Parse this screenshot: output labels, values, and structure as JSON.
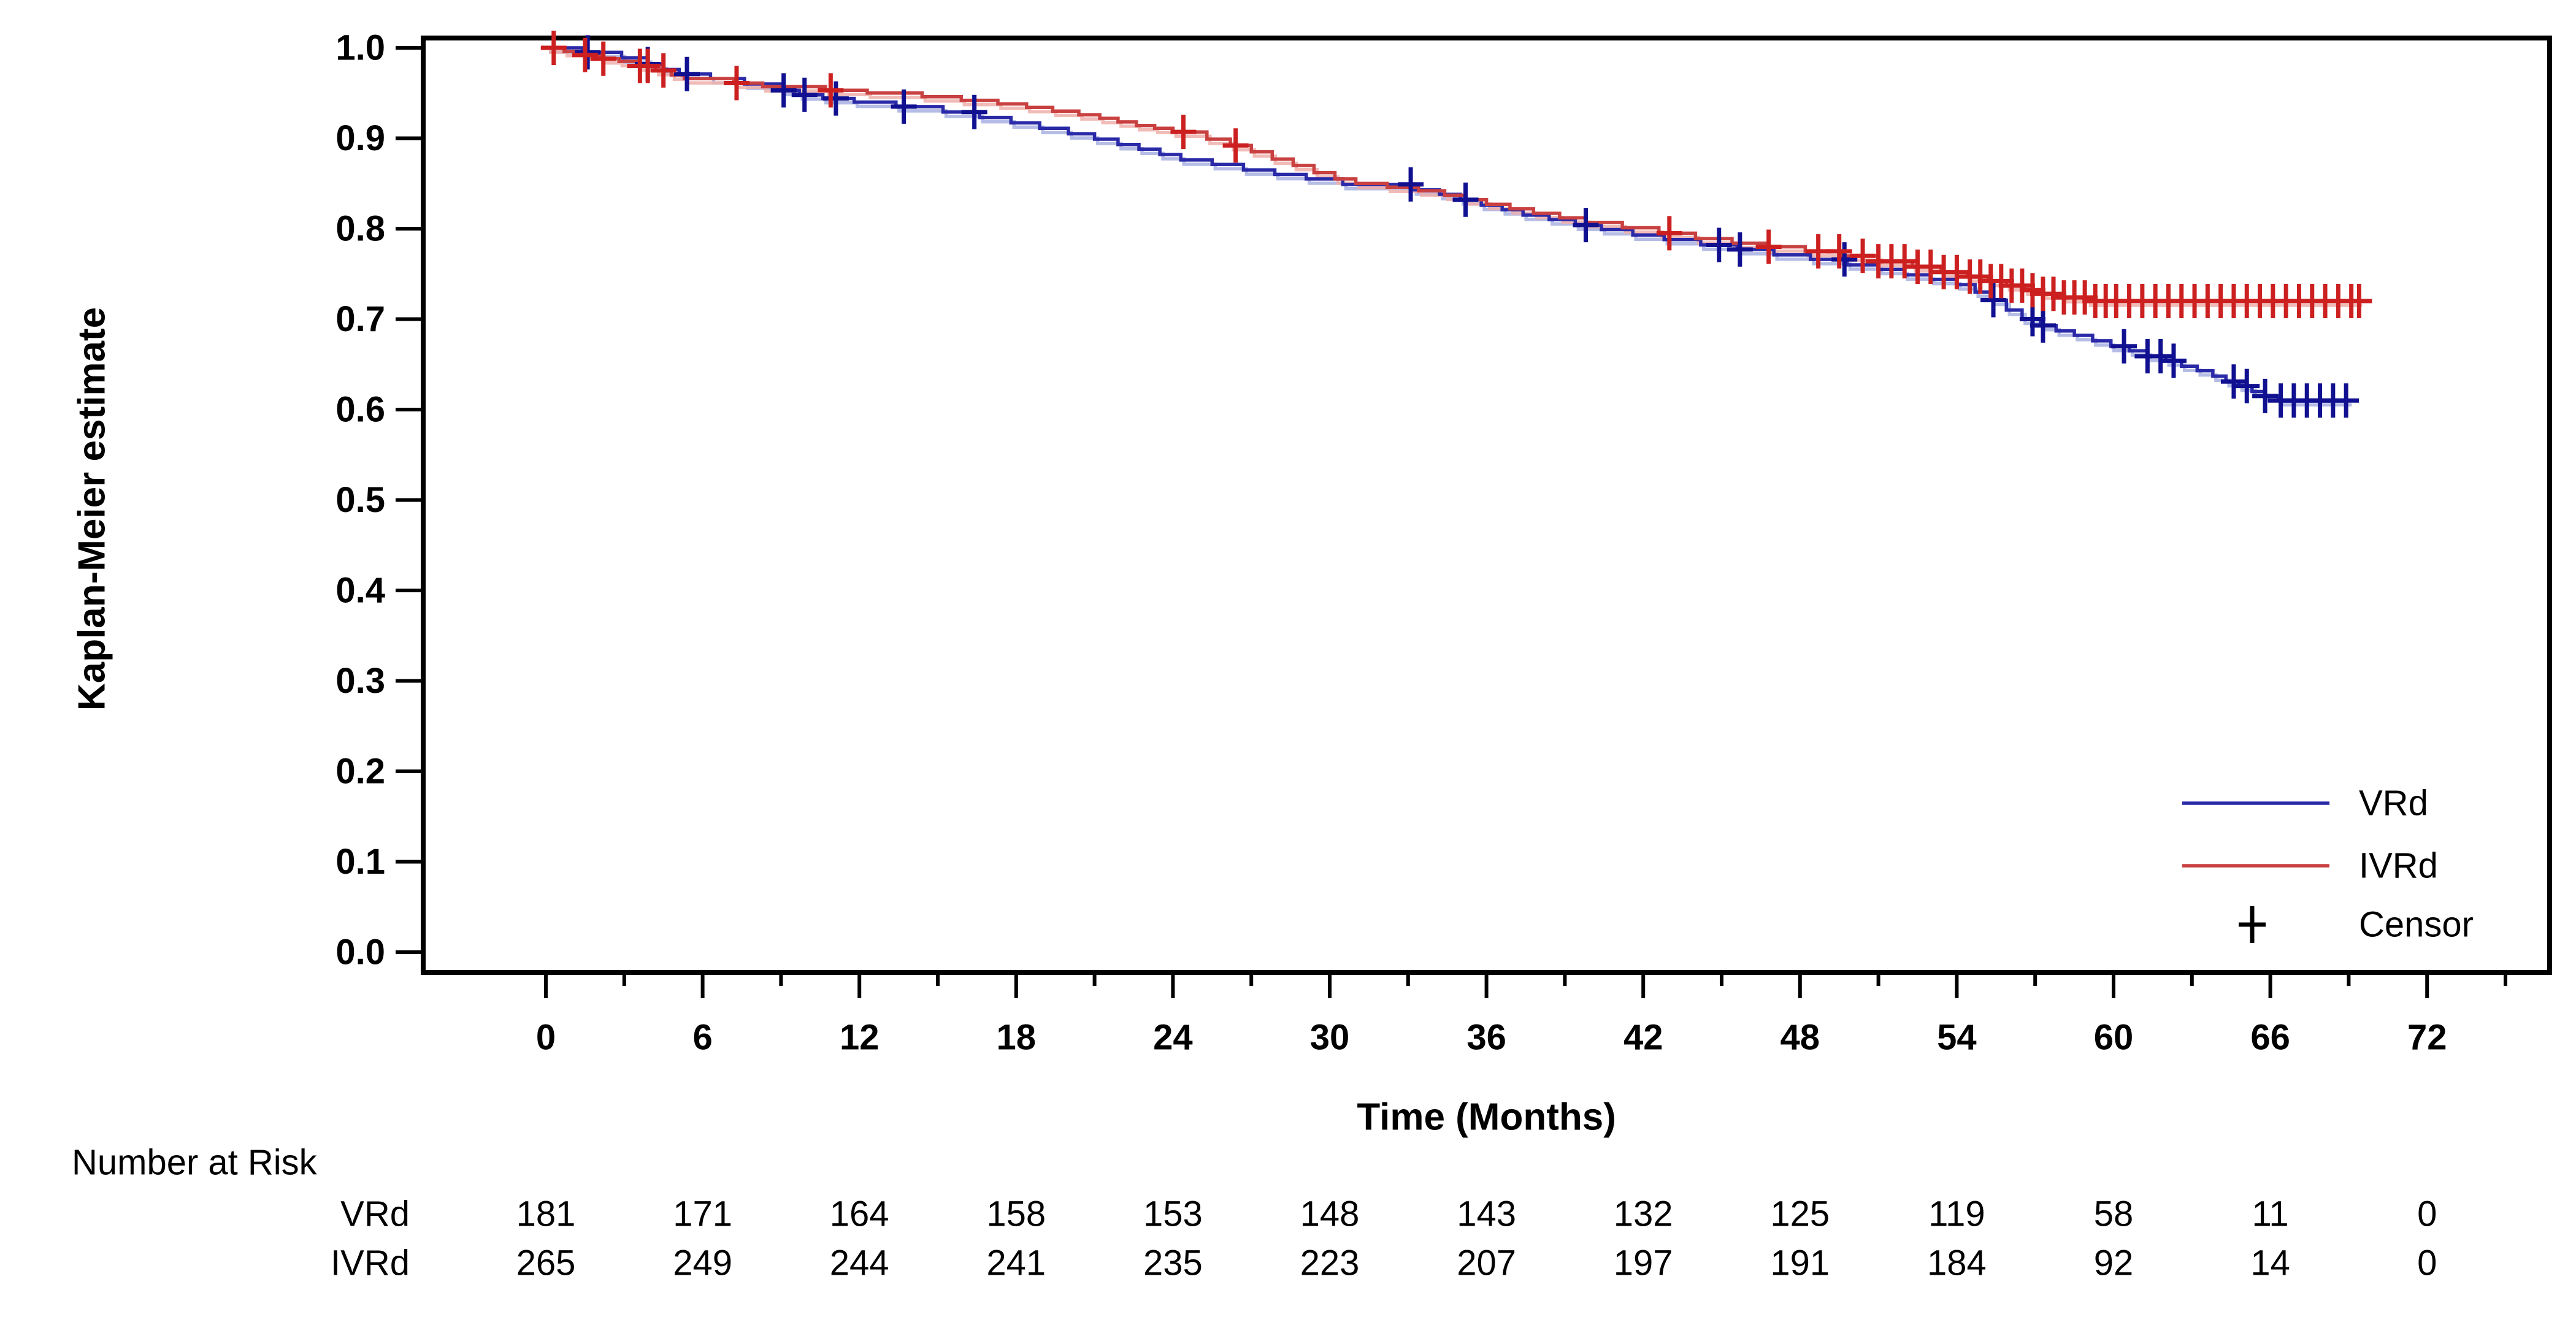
{
  "figure": {
    "background": "#ffffff",
    "axis_color": "#000000",
    "y_axis_title": "Kaplan-Meier estimate",
    "x_axis_title": "Time (Months)"
  },
  "axes": {
    "x": {
      "min": 0,
      "max": 72,
      "major_ticks": [
        0,
        6,
        12,
        18,
        24,
        30,
        36,
        42,
        48,
        54,
        60,
        66,
        72
      ],
      "minor_ticks": [
        3,
        9,
        15,
        21,
        27,
        33,
        39,
        45,
        51,
        57,
        63,
        69,
        75
      ]
    },
    "y": {
      "min": 0.0,
      "max": 1.0,
      "tick_labels": [
        "1.0",
        "0.9",
        "0.8",
        "0.7",
        "0.6",
        "0.5",
        "0.4",
        "0.3",
        "0.2",
        "0.1",
        "0.0"
      ],
      "tick_values": [
        1.0,
        0.9,
        0.8,
        0.7,
        0.6,
        0.5,
        0.4,
        0.3,
        0.2,
        0.1,
        0.0
      ]
    }
  },
  "legend": {
    "items": [
      {
        "label": "VRd",
        "type": "line",
        "color": "#2a2aa8"
      },
      {
        "label": "IVRd",
        "type": "line",
        "color": "#c94040"
      },
      {
        "label": "Censor",
        "type": "plus",
        "color": "#000000"
      }
    ]
  },
  "risk_table": {
    "title": "Number at Risk",
    "times": [
      0,
      6,
      12,
      18,
      24,
      30,
      36,
      42,
      48,
      54,
      60,
      66,
      72
    ],
    "rows": [
      {
        "label": "VRd",
        "values": [
          181,
          171,
          164,
          158,
          153,
          148,
          143,
          132,
          125,
          119,
          58,
          11,
          0
        ]
      },
      {
        "label": "IVRd",
        "values": [
          265,
          249,
          244,
          241,
          235,
          223,
          207,
          197,
          191,
          184,
          92,
          14,
          0
        ]
      }
    ]
  },
  "chart_data": {
    "type": "line",
    "subtype": "kaplan-meier-step",
    "title": "",
    "xlabel": "Time (Months)",
    "ylabel": "Kaplan-Meier estimate",
    "xlim": [
      0,
      76.5
    ],
    "ylim": [
      0.0,
      1.0
    ],
    "grid": false,
    "legend_position": "bottom-right-inside",
    "series": [
      {
        "name": "VRd",
        "color": "#2a2aa8",
        "halo_color": "#a8b0e0",
        "censor_color": "#101090",
        "km_steps": [
          [
            0,
            1.0
          ],
          [
            1.4,
            0.995
          ],
          [
            2.9,
            0.989
          ],
          [
            3.9,
            0.982
          ],
          [
            4.5,
            0.976
          ],
          [
            5.1,
            0.971
          ],
          [
            6.3,
            0.966
          ],
          [
            7.6,
            0.96
          ],
          [
            9.0,
            0.953
          ],
          [
            9.7,
            0.948
          ],
          [
            10.6,
            0.944
          ],
          [
            11.8,
            0.94
          ],
          [
            13.4,
            0.935
          ],
          [
            15.2,
            0.929
          ],
          [
            16.6,
            0.923
          ],
          [
            17.8,
            0.917
          ],
          [
            18.9,
            0.911
          ],
          [
            20.0,
            0.905
          ],
          [
            21.0,
            0.899
          ],
          [
            21.9,
            0.893
          ],
          [
            22.7,
            0.888
          ],
          [
            23.5,
            0.882
          ],
          [
            24.3,
            0.876
          ],
          [
            25.5,
            0.871
          ],
          [
            26.7,
            0.865
          ],
          [
            27.9,
            0.86
          ],
          [
            29.1,
            0.855
          ],
          [
            30.5,
            0.849
          ],
          [
            33.2,
            0.843
          ],
          [
            34.2,
            0.838
          ],
          [
            35.0,
            0.832
          ],
          [
            35.8,
            0.826
          ],
          [
            36.6,
            0.821
          ],
          [
            37.4,
            0.815
          ],
          [
            38.4,
            0.81
          ],
          [
            39.4,
            0.804
          ],
          [
            40.4,
            0.799
          ],
          [
            41.6,
            0.793
          ],
          [
            42.8,
            0.788
          ],
          [
            44.2,
            0.782
          ],
          [
            45.6,
            0.777
          ],
          [
            47.0,
            0.771
          ],
          [
            48.4,
            0.766
          ],
          [
            49.8,
            0.76
          ],
          [
            51.0,
            0.755
          ],
          [
            52.0,
            0.749
          ],
          [
            53.0,
            0.744
          ],
          [
            54.0,
            0.738
          ],
          [
            54.7,
            0.73
          ],
          [
            55.3,
            0.721
          ],
          [
            55.9,
            0.71
          ],
          [
            56.5,
            0.7
          ],
          [
            57.2,
            0.693
          ],
          [
            57.8,
            0.687
          ],
          [
            58.5,
            0.682
          ],
          [
            59.2,
            0.676
          ],
          [
            59.9,
            0.67
          ],
          [
            60.6,
            0.665
          ],
          [
            61.3,
            0.659
          ],
          [
            62.0,
            0.654
          ],
          [
            62.6,
            0.648
          ],
          [
            63.2,
            0.643
          ],
          [
            63.8,
            0.637
          ],
          [
            64.3,
            0.631
          ],
          [
            64.8,
            0.626
          ],
          [
            65.3,
            0.62
          ],
          [
            65.8,
            0.615
          ],
          [
            66.3,
            0.61
          ],
          [
            69.0,
            0.61
          ]
        ],
        "censor_times": [
          1.6,
          3.9,
          5.4,
          9.1,
          9.9,
          11.1,
          13.7,
          16.4,
          33.1,
          35.2,
          39.8,
          44.9,
          45.7,
          49.7,
          55.4,
          56.9,
          57.3,
          60.4,
          61.3,
          61.8,
          62.3,
          64.6,
          65.1,
          65.8,
          66.4,
          66.9,
          67.4,
          67.9,
          68.4,
          68.9
        ]
      },
      {
        "name": "IVRd",
        "color": "#c94040",
        "halo_color": "#eeb0ac",
        "censor_color": "#cc2020",
        "km_steps": [
          [
            0,
            1.0
          ],
          [
            0.7,
            0.996
          ],
          [
            1.4,
            0.992
          ],
          [
            2.1,
            0.988
          ],
          [
            2.8,
            0.985
          ],
          [
            3.6,
            0.98
          ],
          [
            4.2,
            0.975
          ],
          [
            4.8,
            0.97
          ],
          [
            5.3,
            0.966
          ],
          [
            7.2,
            0.961
          ],
          [
            8.3,
            0.957
          ],
          [
            10.7,
            0.953
          ],
          [
            12.3,
            0.95
          ],
          [
            14.4,
            0.946
          ],
          [
            15.9,
            0.942
          ],
          [
            17.3,
            0.938
          ],
          [
            18.4,
            0.934
          ],
          [
            19.4,
            0.93
          ],
          [
            20.4,
            0.926
          ],
          [
            21.2,
            0.922
          ],
          [
            21.9,
            0.918
          ],
          [
            22.6,
            0.914
          ],
          [
            23.3,
            0.911
          ],
          [
            24.0,
            0.907
          ],
          [
            25.3,
            0.899
          ],
          [
            26.2,
            0.892
          ],
          [
            27.0,
            0.885
          ],
          [
            27.8,
            0.877
          ],
          [
            28.6,
            0.87
          ],
          [
            29.4,
            0.862
          ],
          [
            30.2,
            0.855
          ],
          [
            31.0,
            0.85
          ],
          [
            32.2,
            0.846
          ],
          [
            33.4,
            0.842
          ],
          [
            34.4,
            0.837
          ],
          [
            35.2,
            0.832
          ],
          [
            36.0,
            0.827
          ],
          [
            36.9,
            0.822
          ],
          [
            37.8,
            0.817
          ],
          [
            38.8,
            0.812
          ],
          [
            39.8,
            0.807
          ],
          [
            41.2,
            0.801
          ],
          [
            42.6,
            0.795
          ],
          [
            44.0,
            0.789
          ],
          [
            45.4,
            0.784
          ],
          [
            46.8,
            0.78
          ],
          [
            48.2,
            0.775
          ],
          [
            49.6,
            0.77
          ],
          [
            51.0,
            0.764
          ],
          [
            52.3,
            0.758
          ],
          [
            53.4,
            0.752
          ],
          [
            54.4,
            0.747
          ],
          [
            55.2,
            0.742
          ],
          [
            55.9,
            0.737
          ],
          [
            56.6,
            0.732
          ],
          [
            57.3,
            0.728
          ],
          [
            58.1,
            0.724
          ],
          [
            59.0,
            0.72
          ],
          [
            69.4,
            0.72
          ]
        ],
        "censor_times": [
          0.3,
          1.5,
          2.2,
          3.6,
          3.9,
          4.5,
          7.3,
          10.9,
          24.4,
          26.4,
          43.0,
          46.8,
          48.7,
          49.5,
          50.4,
          51.0,
          51.5,
          52.0,
          52.5,
          53.0,
          53.5,
          54.0,
          54.5,
          54.9,
          55.3,
          55.7,
          56.1,
          56.5,
          56.9,
          57.3,
          57.7,
          58.1,
          58.5,
          58.9,
          59.3,
          59.7,
          60.1,
          60.6,
          61.1,
          61.6,
          62.1,
          62.6,
          63.1,
          63.6,
          64.1,
          64.6,
          65.1,
          65.6,
          66.1,
          66.6,
          67.1,
          67.6,
          68.1,
          68.6,
          69.1,
          69.4
        ]
      }
    ]
  }
}
